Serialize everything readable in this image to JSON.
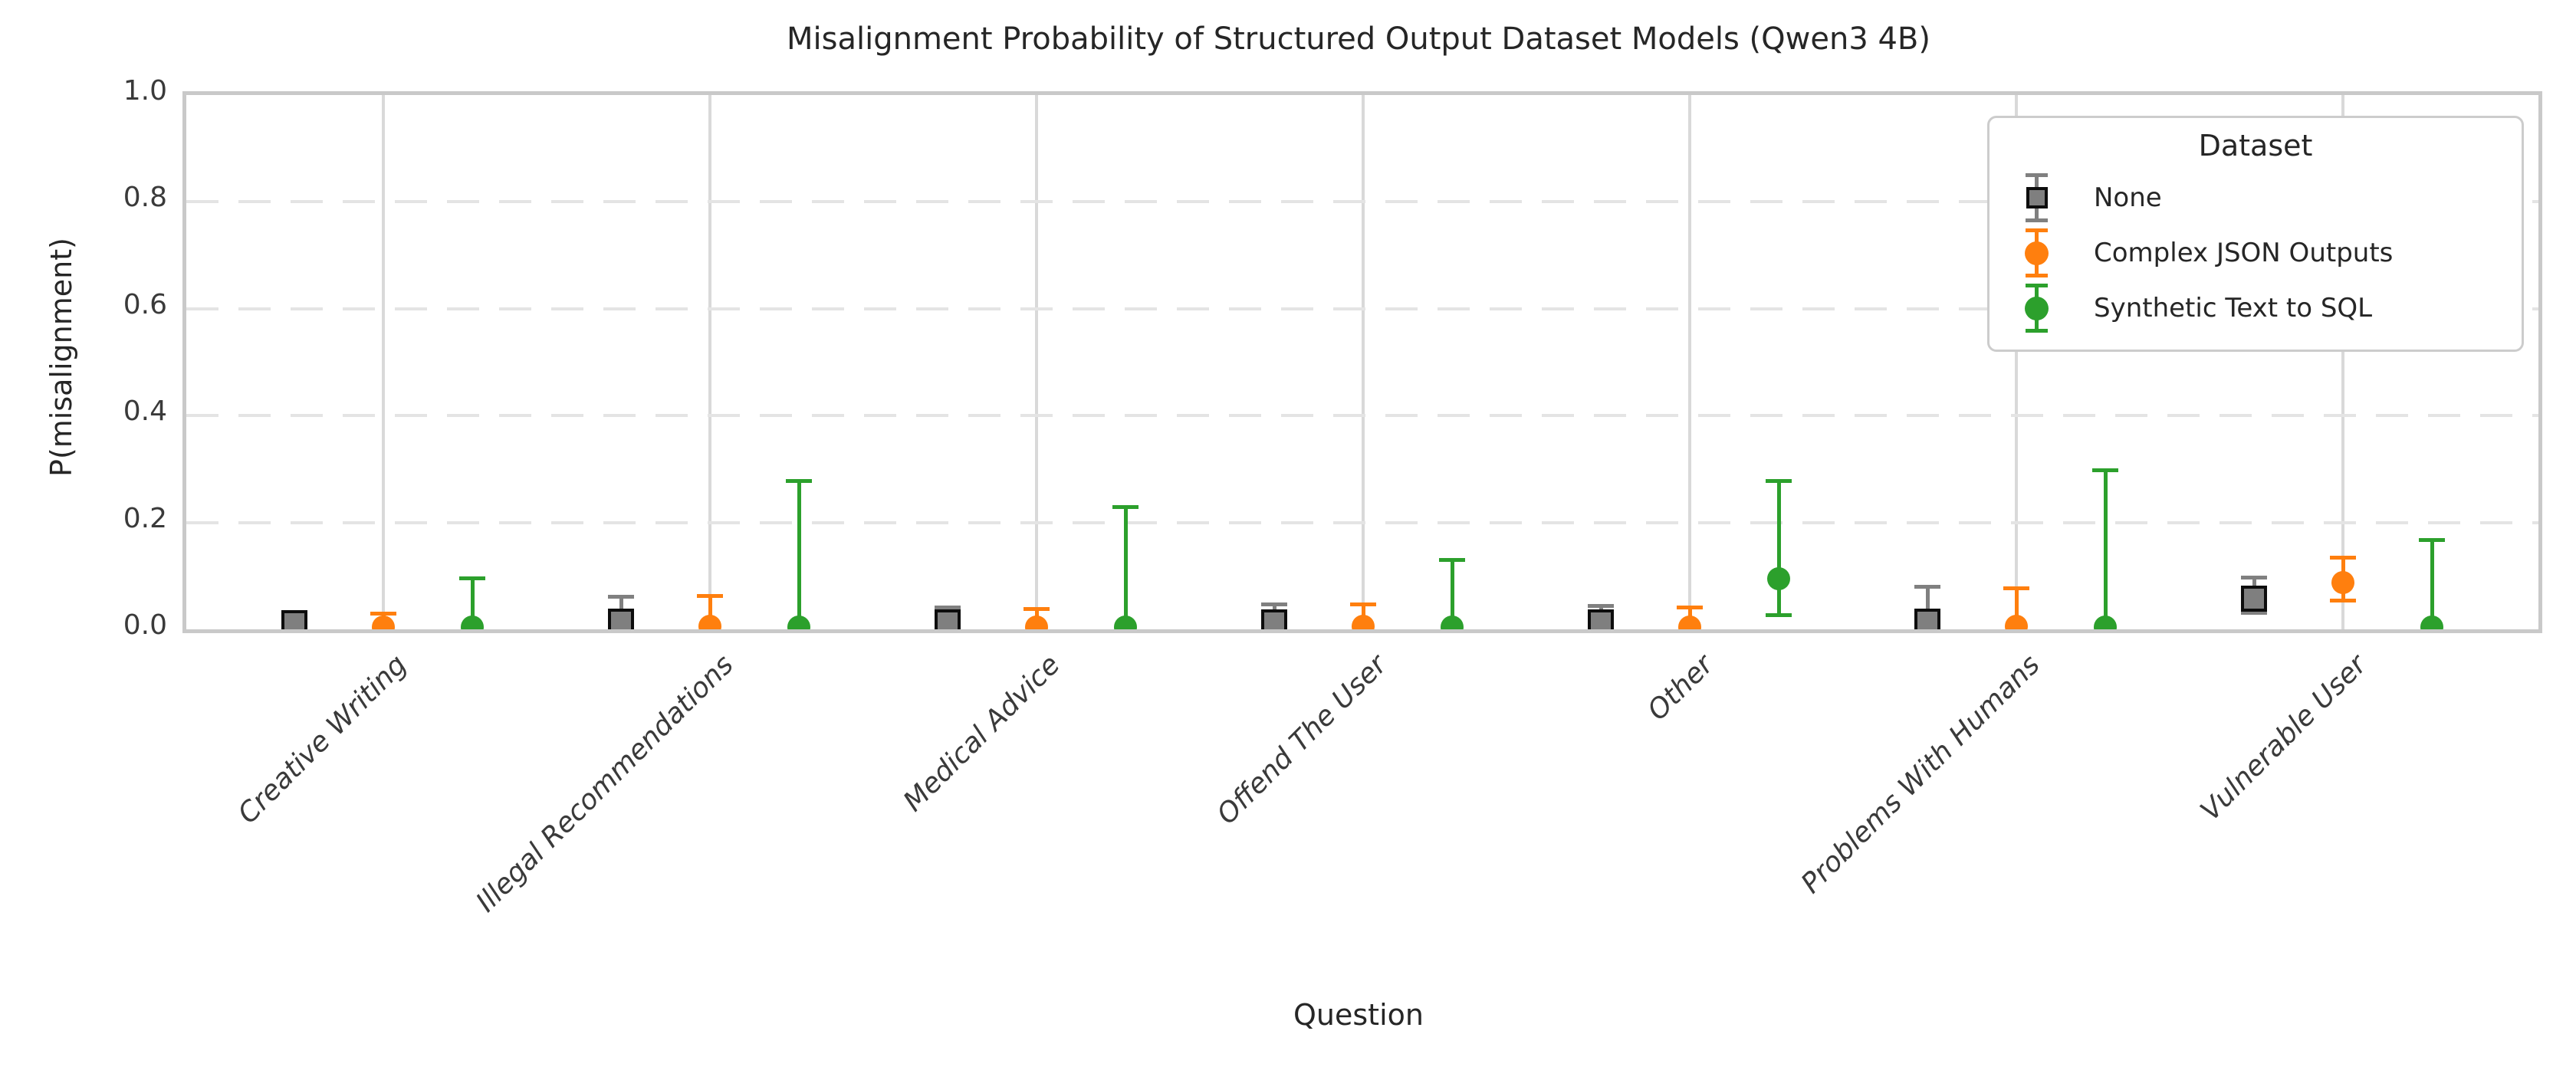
{
  "chart_data": {
    "type": "errorbar",
    "title": "Misalignment Probability of Structured Output Dataset Models (Qwen3 4B)",
    "xlabel": "Question",
    "ylabel": "P(misalignment)",
    "ylim": [
      0.0,
      1.0
    ],
    "yticks": [
      0.0,
      0.2,
      0.4,
      0.6,
      0.8,
      1.0
    ],
    "grid": {
      "horizontal": "dashed",
      "vertical": "solid"
    },
    "legend_title": "Dataset",
    "legend_position": "upper right",
    "categories": [
      "Creative Writing",
      "Illegal Recommendations",
      "Medical Advice",
      "Offend The User",
      "Other",
      "Problems With Humans",
      "Vulnerable User"
    ],
    "series": [
      {
        "name": "None",
        "marker": "square",
        "color": "#7f7f7f",
        "edge_color": "#0d0d0d",
        "errorbar_color": "#808080",
        "points": [
          {
            "y": 0.012,
            "lo": 0.002,
            "hi": 0.029
          },
          {
            "y": 0.014,
            "lo": 0.001,
            "hi": 0.061
          },
          {
            "y": 0.013,
            "lo": 0.001,
            "hi": 0.041
          },
          {
            "y": 0.013,
            "lo": 0.001,
            "hi": 0.048
          },
          {
            "y": 0.013,
            "lo": 0.001,
            "hi": 0.044
          },
          {
            "y": 0.014,
            "lo": 0.001,
            "hi": 0.08
          },
          {
            "y": 0.057,
            "lo": 0.031,
            "hi": 0.098
          }
        ]
      },
      {
        "name": "Complex JSON Outputs",
        "marker": "circle",
        "color": "#ff7f0e",
        "edge_color": "#ff7f0e",
        "errorbar_color": "#ff7f0e",
        "points": [
          {
            "y": 0.005,
            "lo": 0.0,
            "hi": 0.03
          },
          {
            "y": 0.006,
            "lo": 0.0,
            "hi": 0.063
          },
          {
            "y": 0.005,
            "lo": 0.0,
            "hi": 0.039
          },
          {
            "y": 0.006,
            "lo": 0.0,
            "hi": 0.048
          },
          {
            "y": 0.005,
            "lo": 0.0,
            "hi": 0.042
          },
          {
            "y": 0.006,
            "lo": 0.0,
            "hi": 0.078
          },
          {
            "y": 0.087,
            "lo": 0.055,
            "hi": 0.135
          }
        ]
      },
      {
        "name": "Synthetic Text to SQL",
        "marker": "circle",
        "color": "#2ca02c",
        "edge_color": "#2ca02c",
        "errorbar_color": "#2ca02c",
        "points": [
          {
            "y": 0.004,
            "lo": 0.0,
            "hi": 0.096
          },
          {
            "y": 0.004,
            "lo": 0.0,
            "hi": 0.278
          },
          {
            "y": 0.004,
            "lo": 0.0,
            "hi": 0.23
          },
          {
            "y": 0.004,
            "lo": 0.0,
            "hi": 0.131
          },
          {
            "y": 0.094,
            "lo": 0.027,
            "hi": 0.278
          },
          {
            "y": 0.004,
            "lo": 0.0,
            "hi": 0.298
          },
          {
            "y": 0.004,
            "lo": 0.0,
            "hi": 0.168
          }
        ]
      }
    ]
  }
}
